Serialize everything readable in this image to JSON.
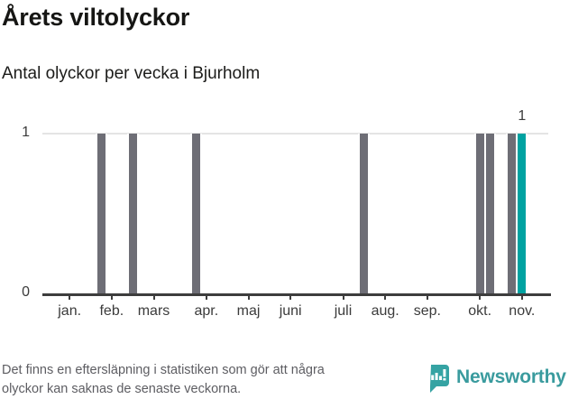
{
  "header": {
    "title": "Årets viltolyckor",
    "subtitle": "Antal olyckor per vecka i Bjurholm"
  },
  "chart_data": {
    "type": "bar",
    "title": "Årets viltolyckor",
    "subtitle": "Antal olyckor per vecka i Bjurholm",
    "x_unit": "week-of-year",
    "num_week_slots": 48,
    "ylim": [
      0,
      1
    ],
    "yticks": [
      {
        "value": 0,
        "label": "0"
      },
      {
        "value": 1,
        "label": "1"
      }
    ],
    "grid": "y-at-1-only",
    "month_ticks": [
      {
        "label": "jan.",
        "slot": 2
      },
      {
        "label": "feb.",
        "slot": 6
      },
      {
        "label": "mars",
        "slot": 10
      },
      {
        "label": "apr.",
        "slot": 15
      },
      {
        "label": "maj",
        "slot": 19
      },
      {
        "label": "juni",
        "slot": 23
      },
      {
        "label": "juli",
        "slot": 28
      },
      {
        "label": "aug.",
        "slot": 32
      },
      {
        "label": "sep.",
        "slot": 36
      },
      {
        "label": "okt.",
        "slot": 41
      },
      {
        "label": "nov.",
        "slot": 45
      }
    ],
    "bars": [
      {
        "slot": 5,
        "value": 1
      },
      {
        "slot": 8,
        "value": 1
      },
      {
        "slot": 14,
        "value": 1
      },
      {
        "slot": 30,
        "value": 1
      },
      {
        "slot": 41,
        "value": 1
      },
      {
        "slot": 42,
        "value": 1
      },
      {
        "slot": 44,
        "value": 1
      },
      {
        "slot": 45,
        "value": 1,
        "highlight": true,
        "data_label": "1"
      }
    ],
    "colors": {
      "bar": "#6e6e76",
      "highlight": "#00a2a1",
      "gridline": "#e4e4e4",
      "axis": "#3d3d3d",
      "tick_text": "#3b3b3b"
    }
  },
  "footer": {
    "note": "Det finns en eftersläpning i statistiken som gör att några\nolyckor kan saknas de senaste veckorna."
  },
  "branding": {
    "name": "Newsworthy",
    "logo_icon": "bar-chart-speech-bubble",
    "brand_color": "#3a9b9e",
    "icon_color": "#35a3a3"
  }
}
